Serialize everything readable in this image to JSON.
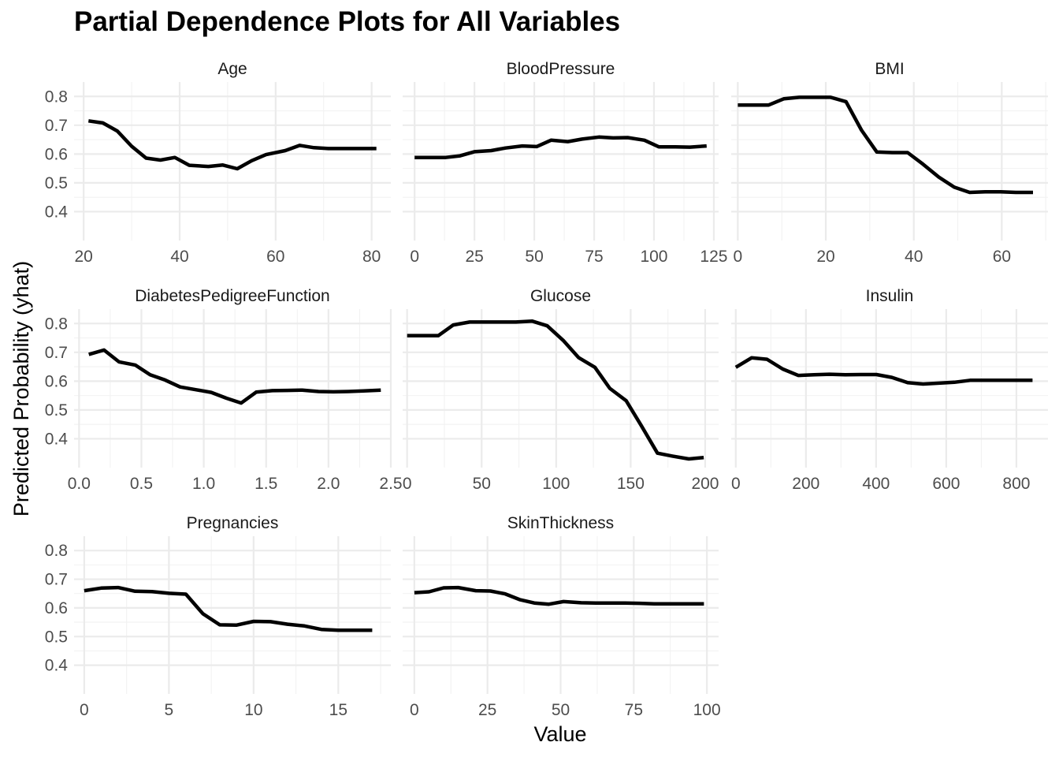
{
  "chart_data": {
    "type": "line",
    "title": "Partial Dependence Plots for All Variables",
    "xlabel": "Value",
    "ylabel": "Predicted Probability (yhat)",
    "ylim": [
      0.3,
      0.85
    ],
    "y_ticks": [
      0.4,
      0.5,
      0.6,
      0.7,
      0.8
    ],
    "y_tick_labels": [
      "0.4",
      "0.5",
      "0.6",
      "0.7",
      "0.8"
    ],
    "grid": true,
    "facets": [
      {
        "name": "Age",
        "xlim": [
          18,
          84
        ],
        "x_ticks": [
          20,
          40,
          60,
          80
        ],
        "x_tick_labels": [
          "20",
          "40",
          "60",
          "80"
        ],
        "x": [
          21,
          24,
          27,
          30,
          33,
          36,
          39,
          42,
          46,
          49,
          52,
          55,
          58,
          62,
          65,
          68,
          71,
          75,
          78,
          81
        ],
        "y": [
          0.715,
          0.708,
          0.68,
          0.627,
          0.586,
          0.579,
          0.588,
          0.561,
          0.557,
          0.562,
          0.549,
          0.577,
          0.598,
          0.612,
          0.63,
          0.622,
          0.619,
          0.619,
          0.619,
          0.619
        ]
      },
      {
        "name": "BloodPressure",
        "xlim": [
          -5,
          127
        ],
        "x": [
          0,
          6,
          13,
          19,
          25,
          32,
          38,
          45,
          51,
          57,
          64,
          70,
          77,
          83,
          89,
          96,
          102,
          109,
          115,
          122
        ],
        "y": [
          0.588,
          0.588,
          0.588,
          0.594,
          0.608,
          0.612,
          0.621,
          0.628,
          0.626,
          0.648,
          0.643,
          0.652,
          0.659,
          0.656,
          0.657,
          0.648,
          0.625,
          0.625,
          0.624,
          0.628
        ],
        "x_ticks": [
          0,
          25,
          50,
          75,
          100,
          125
        ],
        "x_tick_labels": [
          "0",
          "25",
          "50",
          "75",
          "100",
          "125"
        ]
      },
      {
        "name": "BMI",
        "xlim": [
          -1.5,
          70.5
        ],
        "x": [
          0,
          3.5,
          7,
          10.5,
          14,
          17.6,
          21.1,
          24.6,
          28.1,
          31.6,
          35.1,
          38.6,
          42.1,
          45.7,
          49.2,
          52.7,
          56.2,
          59.7,
          63.2,
          67.1
        ],
        "y": [
          0.77,
          0.77,
          0.77,
          0.792,
          0.797,
          0.797,
          0.797,
          0.782,
          0.683,
          0.607,
          0.605,
          0.605,
          0.565,
          0.52,
          0.485,
          0.467,
          0.469,
          0.469,
          0.467,
          0.467
        ],
        "x_ticks": [
          0,
          20,
          40,
          60
        ],
        "x_tick_labels": [
          "0",
          "20",
          "40",
          "60"
        ]
      },
      {
        "name": "DiabetesPedigreeFunction",
        "xlim": [
          -0.04,
          2.5
        ],
        "x": [
          0.078,
          0.2,
          0.32,
          0.45,
          0.57,
          0.69,
          0.81,
          0.94,
          1.06,
          1.18,
          1.3,
          1.42,
          1.55,
          1.67,
          1.79,
          1.92,
          2.04,
          2.16,
          2.28,
          2.42
        ],
        "y": [
          0.693,
          0.708,
          0.667,
          0.656,
          0.622,
          0.604,
          0.58,
          0.57,
          0.561,
          0.541,
          0.524,
          0.562,
          0.567,
          0.568,
          0.569,
          0.564,
          0.563,
          0.564,
          0.566,
          0.569
        ],
        "x_ticks": [
          0,
          0.5,
          1,
          1.5,
          2,
          2.5
        ],
        "x_tick_labels": [
          "0.0",
          "0.5",
          "1.0",
          "1.5",
          "2.0",
          "2.5"
        ]
      },
      {
        "name": "Glucose",
        "xlim": [
          -3,
          209
        ],
        "x": [
          0,
          10,
          21,
          31,
          42,
          52,
          63,
          73,
          84,
          94,
          105,
          115,
          126,
          136,
          147,
          157,
          168,
          178,
          189,
          199
        ],
        "y": [
          0.758,
          0.758,
          0.758,
          0.795,
          0.805,
          0.805,
          0.805,
          0.805,
          0.808,
          0.792,
          0.74,
          0.682,
          0.648,
          0.575,
          0.532,
          0.447,
          0.35,
          0.34,
          0.33,
          0.335
        ],
        "x_ticks": [
          0,
          50,
          100,
          150,
          200
        ],
        "x_tick_labels": [
          "0",
          "50",
          "100",
          "150",
          "200"
        ]
      },
      {
        "name": "Insulin",
        "xlim": [
          -13,
          890
        ],
        "x": [
          0,
          45,
          89,
          134,
          178,
          223,
          267,
          312,
          356,
          401,
          445,
          490,
          534,
          579,
          623,
          668,
          712,
          757,
          801,
          846
        ],
        "y": [
          0.648,
          0.681,
          0.676,
          0.642,
          0.62,
          0.622,
          0.624,
          0.622,
          0.623,
          0.623,
          0.613,
          0.595,
          0.59,
          0.593,
          0.596,
          0.603,
          0.603,
          0.603,
          0.603,
          0.603
        ],
        "x_ticks": [
          0,
          200,
          400,
          600,
          800
        ],
        "x_tick_labels": [
          "0",
          "200",
          "400",
          "600",
          "800"
        ]
      },
      {
        "name": "Pregnancies",
        "xlim": [
          -0.6,
          18.1
        ],
        "x": [
          0,
          1,
          2,
          3,
          4,
          5,
          6,
          7,
          8,
          9,
          10,
          11,
          12,
          13,
          14,
          15,
          16,
          17
        ],
        "y": [
          0.66,
          0.669,
          0.671,
          0.658,
          0.657,
          0.651,
          0.648,
          0.58,
          0.541,
          0.54,
          0.553,
          0.552,
          0.543,
          0.537,
          0.525,
          0.522,
          0.522,
          0.522
        ],
        "x_ticks": [
          0,
          5,
          10,
          15
        ],
        "x_tick_labels": [
          "0",
          "5",
          "10",
          "15"
        ]
      },
      {
        "name": "SkinThickness",
        "xlim": [
          -4,
          104
        ],
        "x": [
          0,
          5,
          10,
          15,
          21,
          26,
          31,
          36,
          41,
          46,
          51,
          57,
          62,
          67,
          72,
          77,
          82,
          87,
          93,
          99
        ],
        "y": [
          0.653,
          0.656,
          0.67,
          0.671,
          0.66,
          0.659,
          0.649,
          0.629,
          0.617,
          0.613,
          0.622,
          0.618,
          0.617,
          0.617,
          0.617,
          0.616,
          0.614,
          0.614,
          0.614,
          0.614
        ],
        "x_ticks": [
          0,
          25,
          50,
          75,
          100
        ],
        "x_tick_labels": [
          "0",
          "25",
          "50",
          "75",
          "100"
        ]
      }
    ]
  }
}
